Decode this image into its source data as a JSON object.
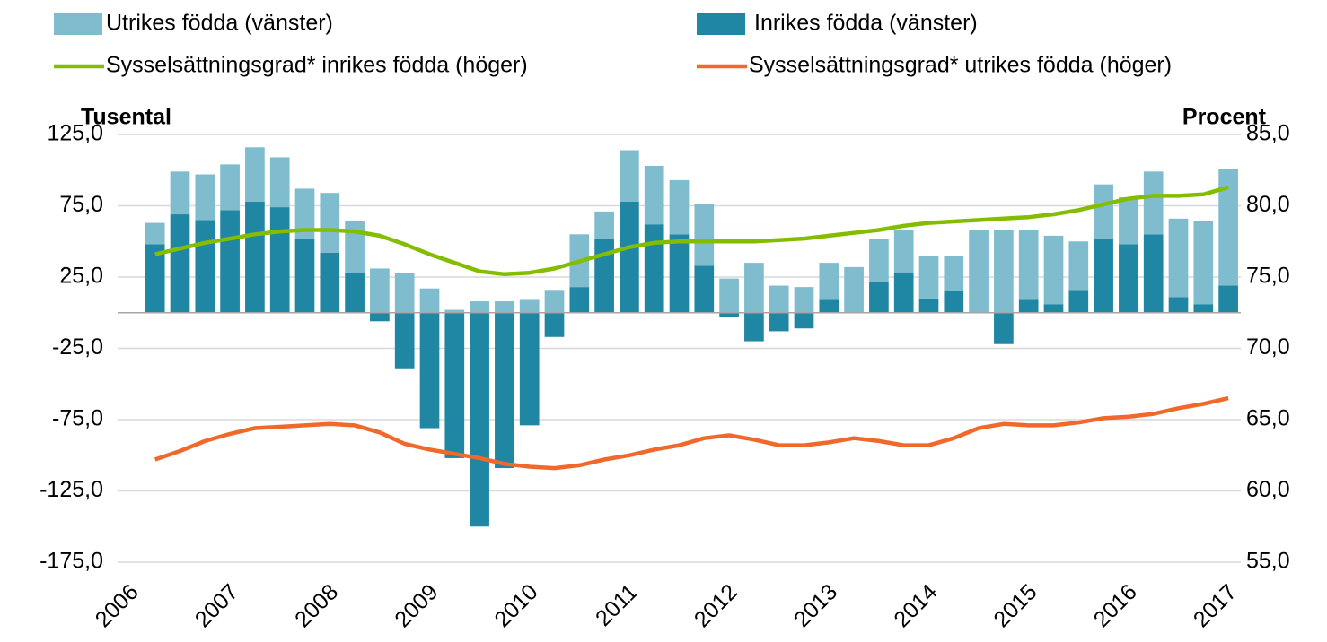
{
  "chart_data": {
    "type": "bar",
    "categories": [
      "2006",
      null,
      null,
      null,
      "2007",
      null,
      null,
      null,
      "2008",
      null,
      null,
      null,
      "2009",
      null,
      null,
      null,
      "2010",
      null,
      null,
      null,
      "2011",
      null,
      null,
      null,
      "2012",
      null,
      null,
      null,
      "2013",
      null,
      null,
      null,
      "2014",
      null,
      null,
      null,
      "2015",
      null,
      null,
      null,
      "2016",
      null,
      null,
      null,
      "2017"
    ],
    "y_label": "Tusental",
    "y2_label": "Procent",
    "ylim": [
      -175,
      125
    ],
    "yticks": [
      {
        "value": -175,
        "label": "-175,0"
      },
      {
        "value": -125,
        "label": "-125,0"
      },
      {
        "value": -75,
        "label": "-75,0"
      },
      {
        "value": -25,
        "label": "-25,0"
      },
      {
        "value": 25,
        "label": "25,0"
      },
      {
        "value": 75,
        "label": "75,0"
      },
      {
        "value": 125,
        "label": "125,0"
      }
    ],
    "y2lim": [
      55,
      85
    ],
    "y2ticks": [
      {
        "value": 55,
        "label": "55,0"
      },
      {
        "value": 60,
        "label": "60,0"
      },
      {
        "value": 65,
        "label": "65,0"
      },
      {
        "value": 70,
        "label": "70,0"
      },
      {
        "value": 75,
        "label": "75,0"
      },
      {
        "value": 80,
        "label": "80,0"
      },
      {
        "value": 85,
        "label": "85,0"
      }
    ],
    "grid": true,
    "series": [
      {
        "name": "Utrikes födda (vänster)",
        "type": "bar",
        "color": "#7fbccd",
        "values": [
          null,
          15,
          30,
          32,
          32,
          38,
          35,
          35,
          42,
          36,
          31,
          28,
          17,
          2,
          8,
          8,
          9,
          16,
          37,
          19,
          36,
          41,
          38,
          43,
          24,
          35,
          19,
          18,
          26,
          32,
          30,
          30,
          30,
          25,
          58,
          58,
          49,
          48,
          34,
          38,
          33,
          44,
          55,
          58,
          82
        ]
      },
      {
        "name": "Inrikes födda (vänster)",
        "type": "bar",
        "color": "#1f86a3",
        "values": [
          null,
          48,
          69,
          65,
          72,
          78,
          74,
          52,
          42,
          28,
          -6,
          -39,
          -81,
          -102,
          -150,
          -109,
          -79,
          -17,
          18,
          52,
          78,
          62,
          55,
          33,
          -3,
          -20,
          -13,
          -11,
          9,
          0,
          22,
          28,
          10,
          15,
          0,
          -22,
          9,
          6,
          16,
          52,
          48,
          55,
          11,
          6,
          19
        ]
      },
      {
        "name": "Sysselsättningsgrad* inrikes födda (höger)",
        "type": "line",
        "axis": "y2",
        "color": "#84bd00",
        "values": [
          null,
          76.6,
          77.0,
          77.4,
          77.7,
          78.0,
          78.2,
          78.3,
          78.3,
          78.2,
          77.9,
          77.3,
          76.6,
          76.0,
          75.4,
          75.2,
          75.3,
          75.6,
          76.1,
          76.6,
          77.1,
          77.4,
          77.5,
          77.5,
          77.5,
          77.5,
          77.6,
          77.7,
          77.9,
          78.1,
          78.3,
          78.6,
          78.8,
          78.9,
          79.0,
          79.1,
          79.2,
          79.4,
          79.7,
          80.1,
          80.5,
          80.7,
          80.7,
          80.8,
          81.3
        ]
      },
      {
        "name": "Sysselsättningsgrad* utrikes födda (höger)",
        "type": "line",
        "axis": "y2",
        "color": "#f0692b",
        "values": [
          null,
          62.2,
          62.8,
          63.5,
          64.0,
          64.4,
          64.5,
          64.6,
          64.7,
          64.6,
          64.1,
          63.3,
          62.9,
          62.6,
          62.3,
          61.9,
          61.7,
          61.6,
          61.8,
          62.2,
          62.5,
          62.9,
          63.2,
          63.7,
          63.9,
          63.6,
          63.2,
          63.2,
          63.4,
          63.7,
          63.5,
          63.2,
          63.2,
          63.7,
          64.4,
          64.7,
          64.6,
          64.6,
          64.8,
          65.1,
          65.2,
          65.4,
          65.8,
          66.1,
          66.5
        ]
      }
    ]
  }
}
